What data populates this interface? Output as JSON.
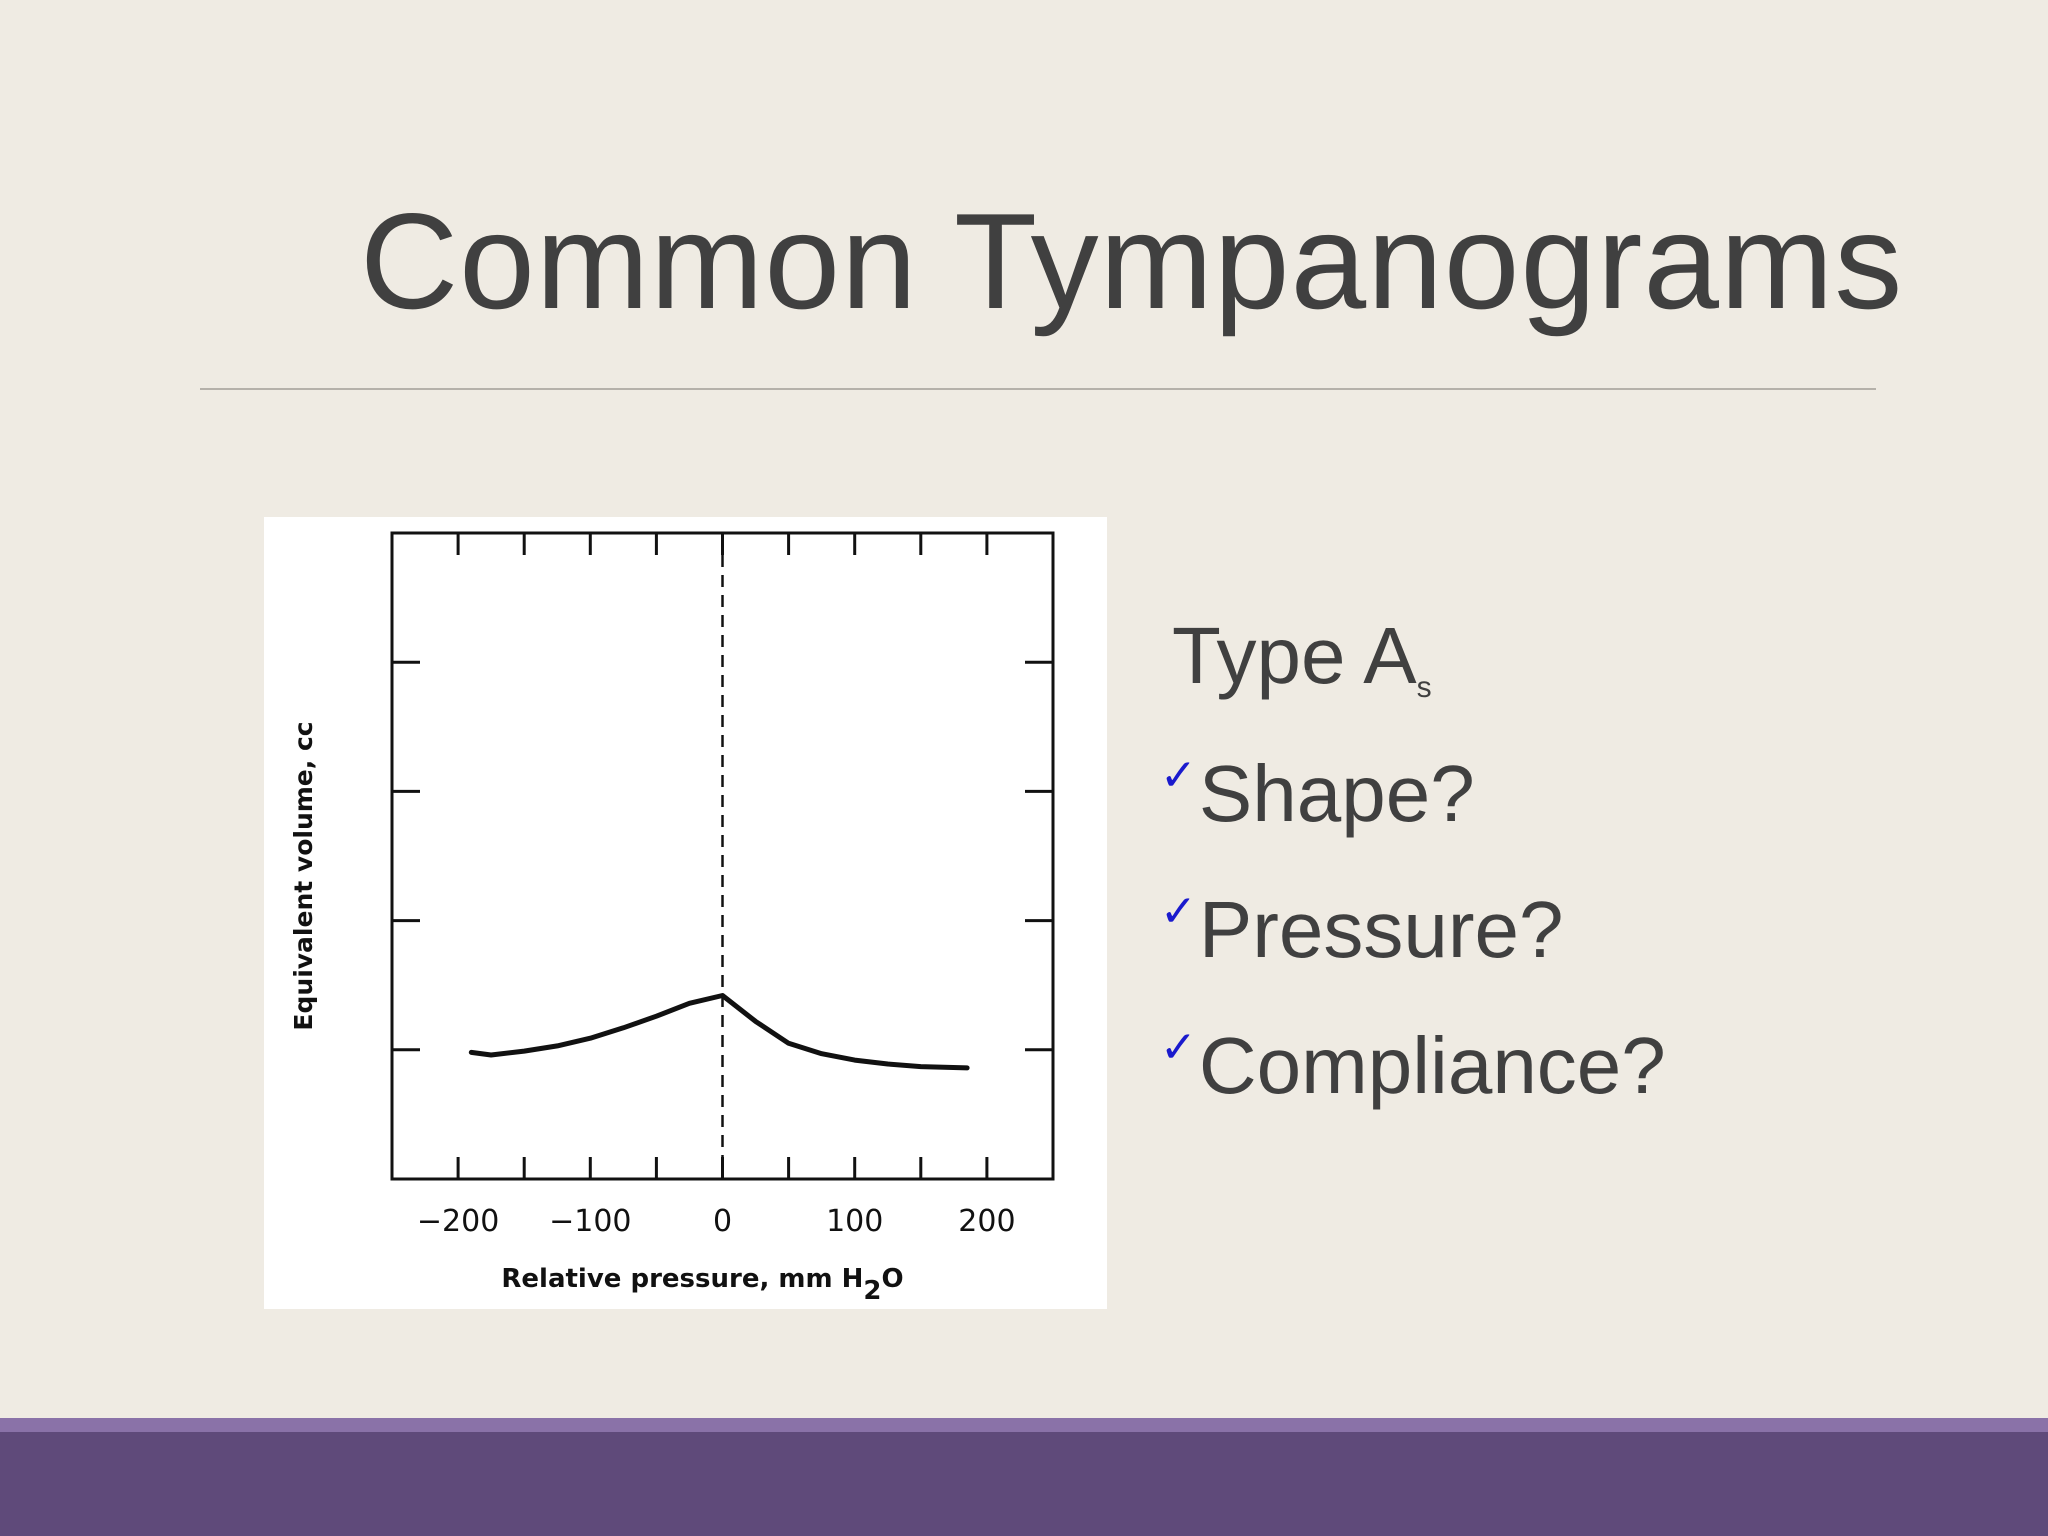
{
  "slide": {
    "title": "Common Tympanograms",
    "type_label": "Type A",
    "type_subscript": "s",
    "bullets": [
      {
        "icon": "check-icon",
        "text": "Shape?"
      },
      {
        "icon": "check-icon",
        "text": "Pressure?"
      },
      {
        "icon": "check-icon",
        "text": "Compliance?"
      }
    ],
    "colors": {
      "background": "#efebe3",
      "text": "#404040",
      "check": "#1a1acd",
      "footer": "#5f4a7a",
      "footer_highlight": "#8a72a8"
    }
  },
  "chart_data": {
    "type": "line",
    "title": "",
    "xlabel": "Relative pressure, mm H",
    "xlabel_subscript": "2",
    "xlabel_suffix": "O",
    "ylabel": "Equivalent volume, cc",
    "xlim": [
      -250,
      250
    ],
    "ylim": [
      0,
      5
    ],
    "x_ticks": [
      -200,
      -100,
      0,
      100,
      200
    ],
    "x_tick_labels": [
      "−200",
      "−100",
      "0",
      "100",
      "200"
    ],
    "y_ticks": [
      1,
      2,
      3,
      4
    ],
    "y_tick_labels": [],
    "reference_line_x": 0,
    "grid": false,
    "legend": "none",
    "series": [
      {
        "points": [
          [
            -190,
            0.98
          ],
          [
            -175,
            0.96
          ],
          [
            -150,
            0.99
          ],
          [
            -125,
            1.03
          ],
          [
            -100,
            1.09
          ],
          [
            -75,
            1.17
          ],
          [
            -50,
            1.26
          ],
          [
            -25,
            1.36
          ],
          [
            0,
            1.42
          ],
          [
            25,
            1.22
          ],
          [
            50,
            1.05
          ],
          [
            75,
            0.97
          ],
          [
            100,
            0.92
          ],
          [
            125,
            0.89
          ],
          [
            150,
            0.87
          ],
          [
            185,
            0.86
          ]
        ]
      }
    ]
  }
}
